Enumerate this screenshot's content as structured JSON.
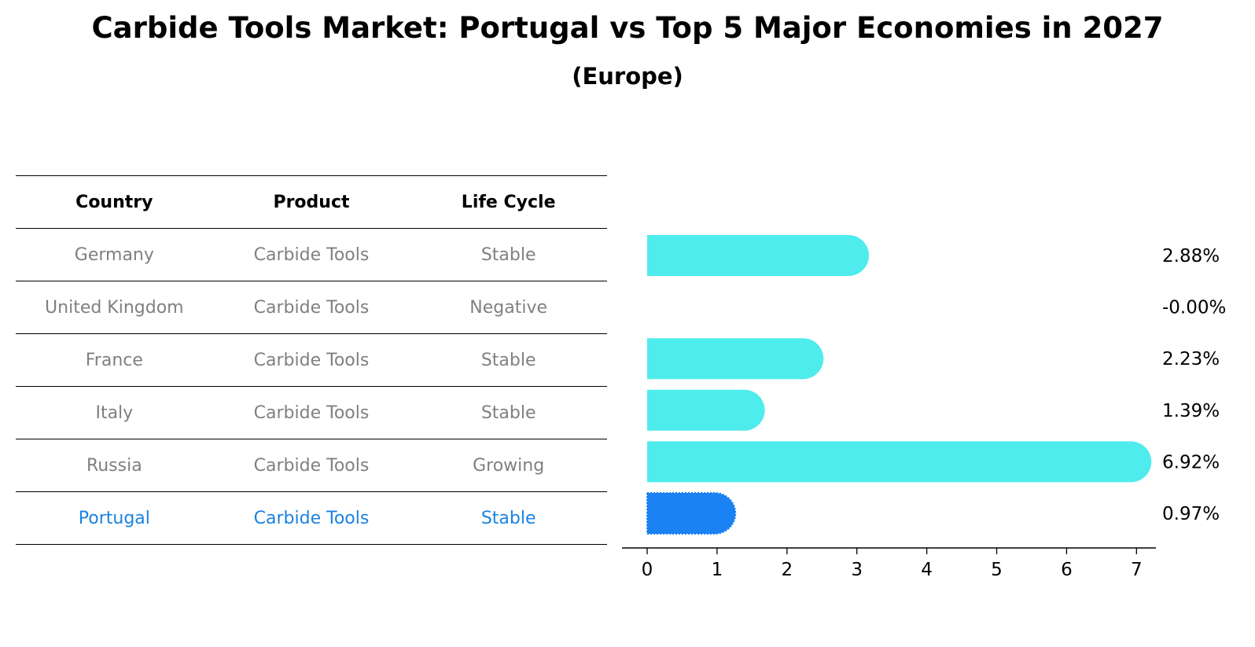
{
  "title": "Carbide Tools Market: Portugal vs Top 5 Major Economies in 2027",
  "subtitle": "(Europe)",
  "table": {
    "headers": [
      "Country",
      "Product",
      "Life Cycle"
    ],
    "rows": [
      {
        "country": "Germany",
        "product": "Carbide Tools",
        "life_cycle": "Stable"
      },
      {
        "country": "United Kingdom",
        "product": "Carbide Tools",
        "life_cycle": "Negative"
      },
      {
        "country": "France",
        "product": "Carbide Tools",
        "life_cycle": "Stable"
      },
      {
        "country": "Italy",
        "product": "Carbide Tools",
        "life_cycle": "Stable"
      },
      {
        "country": "Russia",
        "product": "Carbide Tools",
        "life_cycle": "Growing"
      },
      {
        "country": "Portugal",
        "product": "Carbide Tools",
        "life_cycle": "Stable"
      }
    ]
  },
  "chart_data": {
    "type": "bar",
    "orientation": "horizontal",
    "categories": [
      "Germany",
      "United Kingdom",
      "France",
      "Italy",
      "Russia",
      "Portugal"
    ],
    "values": [
      2.88,
      -0.0,
      2.23,
      1.39,
      6.92,
      0.97
    ],
    "value_labels": [
      "2.88%",
      "-0.00%",
      "2.23%",
      "1.39%",
      "6.92%",
      "0.97%"
    ],
    "highlight": "Portugal",
    "xlim": [
      -0.35,
      7.3
    ],
    "xticks": [
      0,
      1,
      2,
      3,
      4,
      5,
      6,
      7
    ],
    "xlabel": "",
    "ylabel": "",
    "colors": {
      "default": "#4eecec",
      "highlight": "#1a82f2",
      "text_muted": "#808080",
      "text_highlight": "#1a82e2"
    }
  }
}
